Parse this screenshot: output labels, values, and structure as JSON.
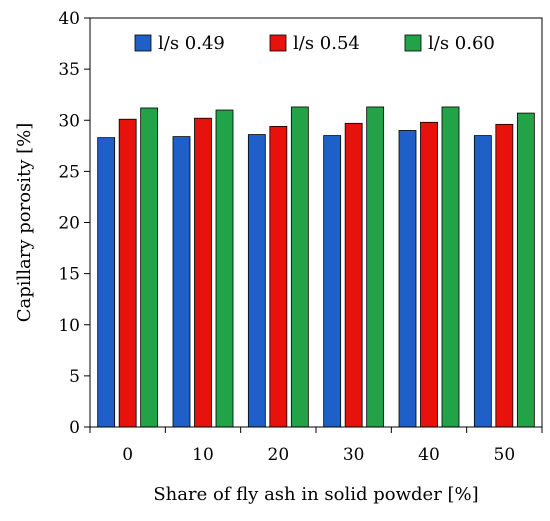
{
  "chart_data": {
    "type": "bar",
    "categories": [
      "0",
      "10",
      "20",
      "30",
      "40",
      "50"
    ],
    "series": [
      {
        "name": "l/s 0.49",
        "color": "#1f5fc8",
        "values": [
          28.3,
          28.4,
          28.6,
          28.5,
          29.0,
          28.5
        ]
      },
      {
        "name": "l/s 0.54",
        "color": "#e8120c",
        "values": [
          30.1,
          30.2,
          29.4,
          29.7,
          29.8,
          29.6
        ]
      },
      {
        "name": "l/s 0.60",
        "color": "#22a348",
        "values": [
          31.2,
          31.0,
          31.3,
          31.3,
          31.3,
          30.7
        ]
      }
    ],
    "xlabel": "Share of fly ash in solid powder [%]",
    "ylabel": "Capillary porosity [%]",
    "ylim": [
      0,
      40
    ],
    "yticks": [
      0,
      5,
      10,
      15,
      20,
      25,
      30,
      35,
      40
    ],
    "grid": false,
    "legend_position": "top"
  }
}
